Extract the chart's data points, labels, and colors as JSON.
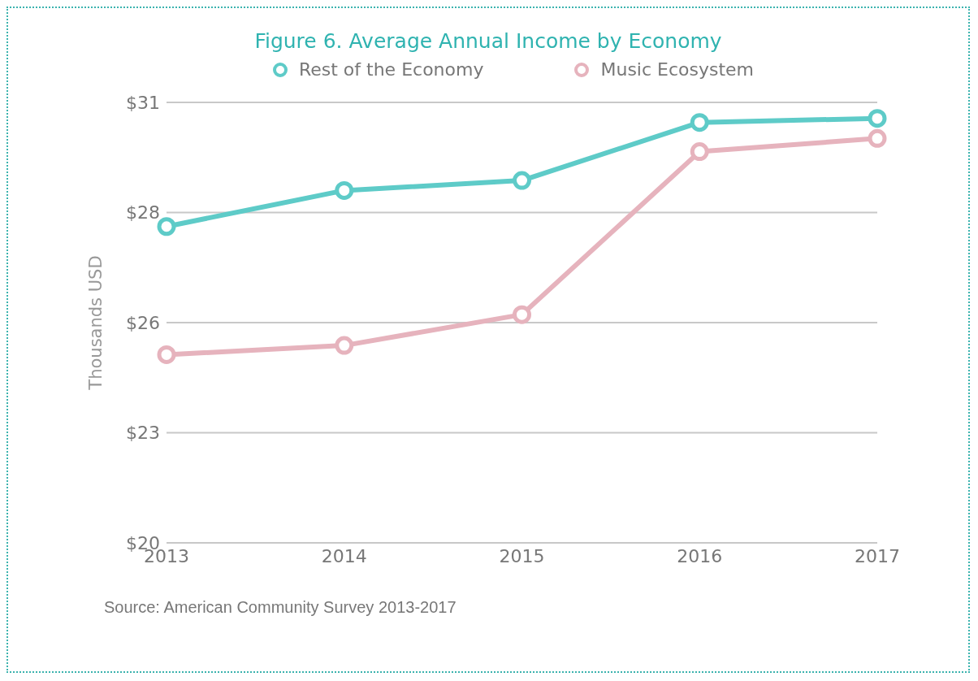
{
  "chart_data": {
    "type": "line",
    "title": "Figure 6. Average Annual Income by Economy",
    "ylabel": "Thousands USD",
    "categories": [
      "2013",
      "2014",
      "2015",
      "2016",
      "2017"
    ],
    "series": [
      {
        "name": "Rest of the Economy",
        "color": "#5ecbc8",
        "values": [
          27.9,
          28.8,
          29.05,
          30.5,
          30.6
        ]
      },
      {
        "name": "Music Ecosystem",
        "color": "#e6b3bd",
        "values": [
          24.7,
          24.93,
          25.7,
          29.77,
          30.1
        ]
      }
    ],
    "ylim": [
      20,
      31
    ],
    "yticks": [
      {
        "value": 20,
        "label": "$20"
      },
      {
        "value": 22.75,
        "label": "$23"
      },
      {
        "value": 25.5,
        "label": "$26"
      },
      {
        "value": 28.25,
        "label": "$28"
      },
      {
        "value": 31,
        "label": "$31"
      }
    ],
    "grid": "y",
    "legend": "top",
    "marker": "circle",
    "line_style": "solid",
    "annotations": [
      "Source: American Community Survey 2013-2017"
    ]
  }
}
